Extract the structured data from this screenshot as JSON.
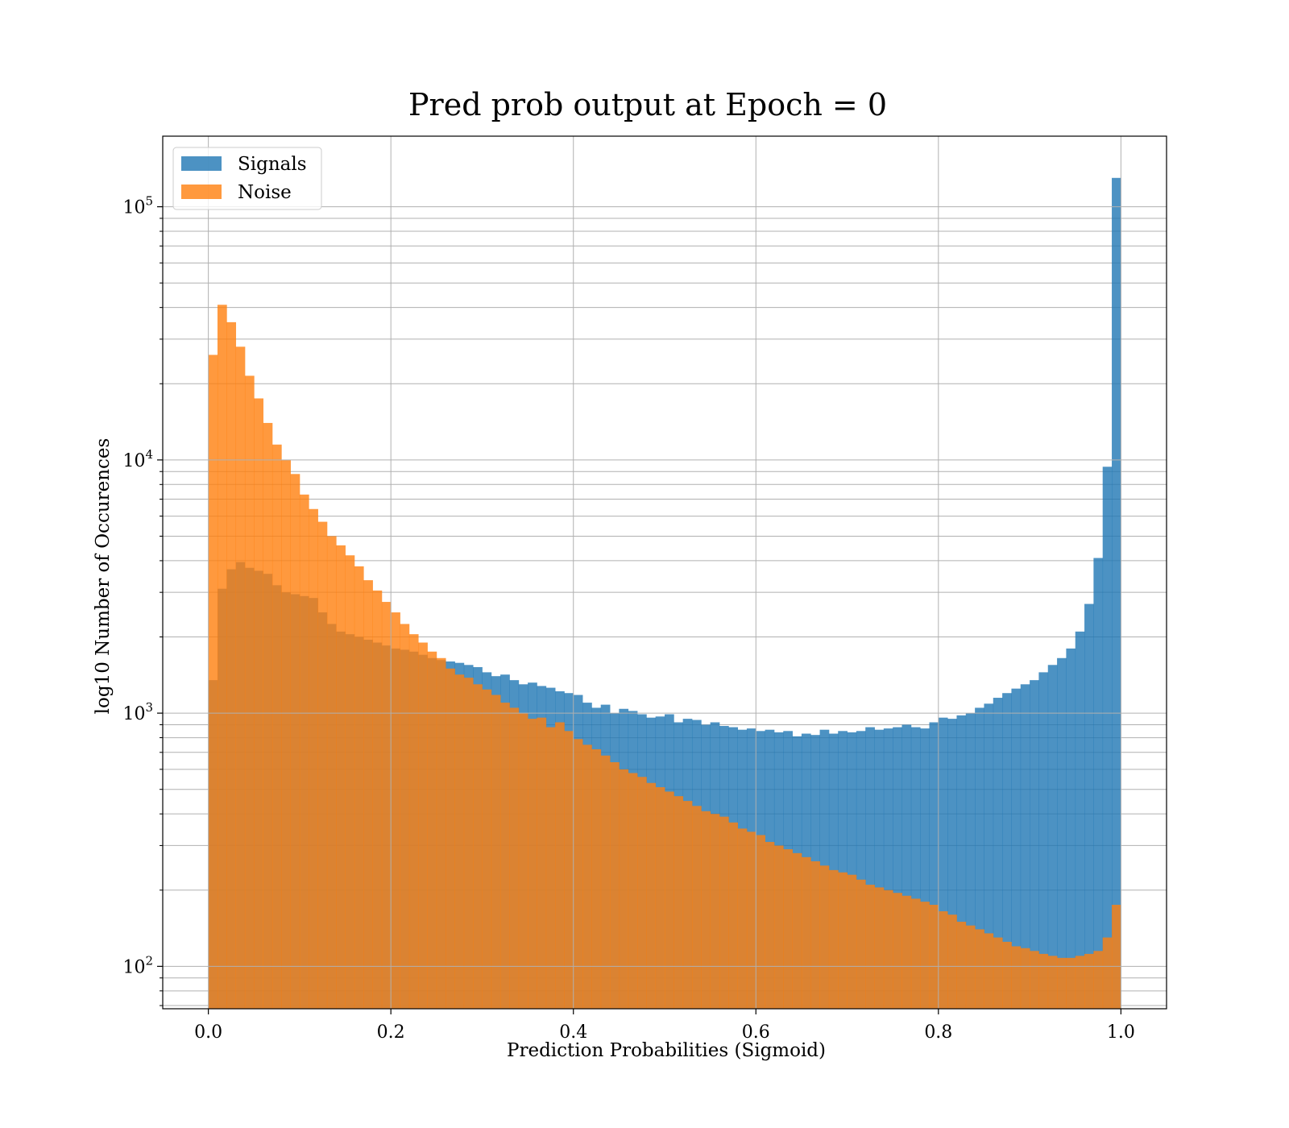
{
  "chart_data": {
    "type": "bar",
    "title": "Pred prob output at Epoch = 0",
    "xlabel": "Prediction Probabilities (Sigmoid)",
    "ylabel": "log10 Number of Occurences",
    "yscale": "log",
    "xlim": [
      -0.05,
      1.05
    ],
    "ylim": [
      68,
      190000
    ],
    "grid": true,
    "legend_position": "top-left",
    "x_ticks": [
      "0.0",
      "0.2",
      "0.4",
      "0.6",
      "0.8",
      "1.0"
    ],
    "y_ticks": [
      {
        "base": "10",
        "exp": "2"
      },
      {
        "base": "10",
        "exp": "3"
      },
      {
        "base": "10",
        "exp": "4"
      },
      {
        "base": "10",
        "exp": "5"
      }
    ],
    "bin_range": [
      0.0,
      1.0
    ],
    "num_bins": 100,
    "series": [
      {
        "name": "Signals",
        "color": "#1f77b4",
        "values": [
          1350,
          3100,
          3700,
          3950,
          3750,
          3650,
          3550,
          3200,
          3000,
          2950,
          2900,
          2850,
          2500,
          2250,
          2100,
          2050,
          2000,
          1950,
          1900,
          1850,
          1800,
          1780,
          1750,
          1700,
          1650,
          1620,
          1600,
          1580,
          1550,
          1520,
          1450,
          1400,
          1420,
          1350,
          1300,
          1320,
          1280,
          1260,
          1220,
          1200,
          1180,
          1100,
          1050,
          1080,
          1000,
          1040,
          1020,
          990,
          960,
          970,
          990,
          920,
          950,
          940,
          900,
          920,
          890,
          880,
          860,
          870,
          850,
          860,
          840,
          850,
          810,
          830,
          820,
          860,
          830,
          850,
          840,
          850,
          880,
          860,
          870,
          880,
          900,
          880,
          870,
          920,
          960,
          950,
          980,
          1000,
          1050,
          1090,
          1150,
          1200,
          1250,
          1300,
          1350,
          1450,
          1550,
          1650,
          1800,
          2100,
          2700,
          4100,
          9400,
          130000
        ]
      },
      {
        "name": "Noise",
        "color": "#ff7f0e",
        "values": [
          26000,
          41000,
          35000,
          28000,
          21500,
          17500,
          14000,
          11500,
          10000,
          8800,
          7300,
          6400,
          5700,
          5000,
          4600,
          4200,
          3800,
          3350,
          3050,
          2750,
          2500,
          2250,
          2050,
          1900,
          1750,
          1650,
          1500,
          1420,
          1380,
          1300,
          1240,
          1180,
          1100,
          1050,
          1000,
          950,
          960,
          880,
          920,
          850,
          790,
          750,
          720,
          680,
          640,
          600,
          580,
          560,
          530,
          510,
          490,
          470,
          450,
          430,
          410,
          400,
          390,
          370,
          350,
          340,
          330,
          310,
          300,
          290,
          280,
          270,
          260,
          250,
          240,
          235,
          230,
          220,
          210,
          205,
          200,
          195,
          190,
          185,
          180,
          175,
          165,
          160,
          150,
          145,
          140,
          135,
          130,
          125,
          120,
          118,
          115,
          112,
          110,
          108,
          108,
          110,
          112,
          115,
          130,
          175
        ]
      }
    ]
  }
}
